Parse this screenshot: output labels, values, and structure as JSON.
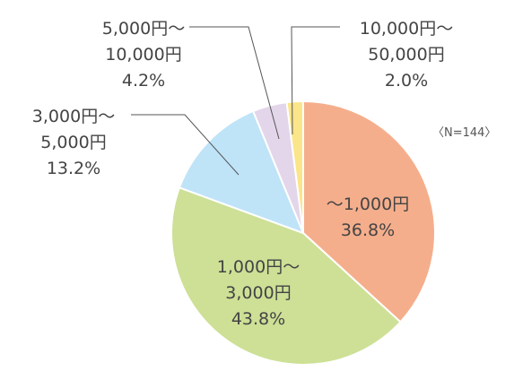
{
  "chart_data": {
    "type": "pie",
    "note": "〈N=144〉",
    "start_angle_deg": 0,
    "direction": "clockwise",
    "slices": [
      {
        "label_lines": [
          "～1,000円"
        ],
        "percent_label": "36.8%",
        "value": 36.8,
        "color": "#f5ae8c"
      },
      {
        "label_lines": [
          "1,000円～",
          "3,000円"
        ],
        "percent_label": "43.8%",
        "value": 43.8,
        "color": "#cde096"
      },
      {
        "label_lines": [
          "3,000円～",
          "5,000円"
        ],
        "percent_label": "13.2%",
        "value": 13.2,
        "color": "#bfe3f7"
      },
      {
        "label_lines": [
          "5,000円～",
          "10,000円"
        ],
        "percent_label": "4.2%",
        "value": 4.2,
        "color": "#e3d6ea"
      },
      {
        "label_lines": [
          "10,000円～",
          "50,000円"
        ],
        "percent_label": "2.0%",
        "value": 2.0,
        "color": "#fbe58a"
      }
    ]
  }
}
